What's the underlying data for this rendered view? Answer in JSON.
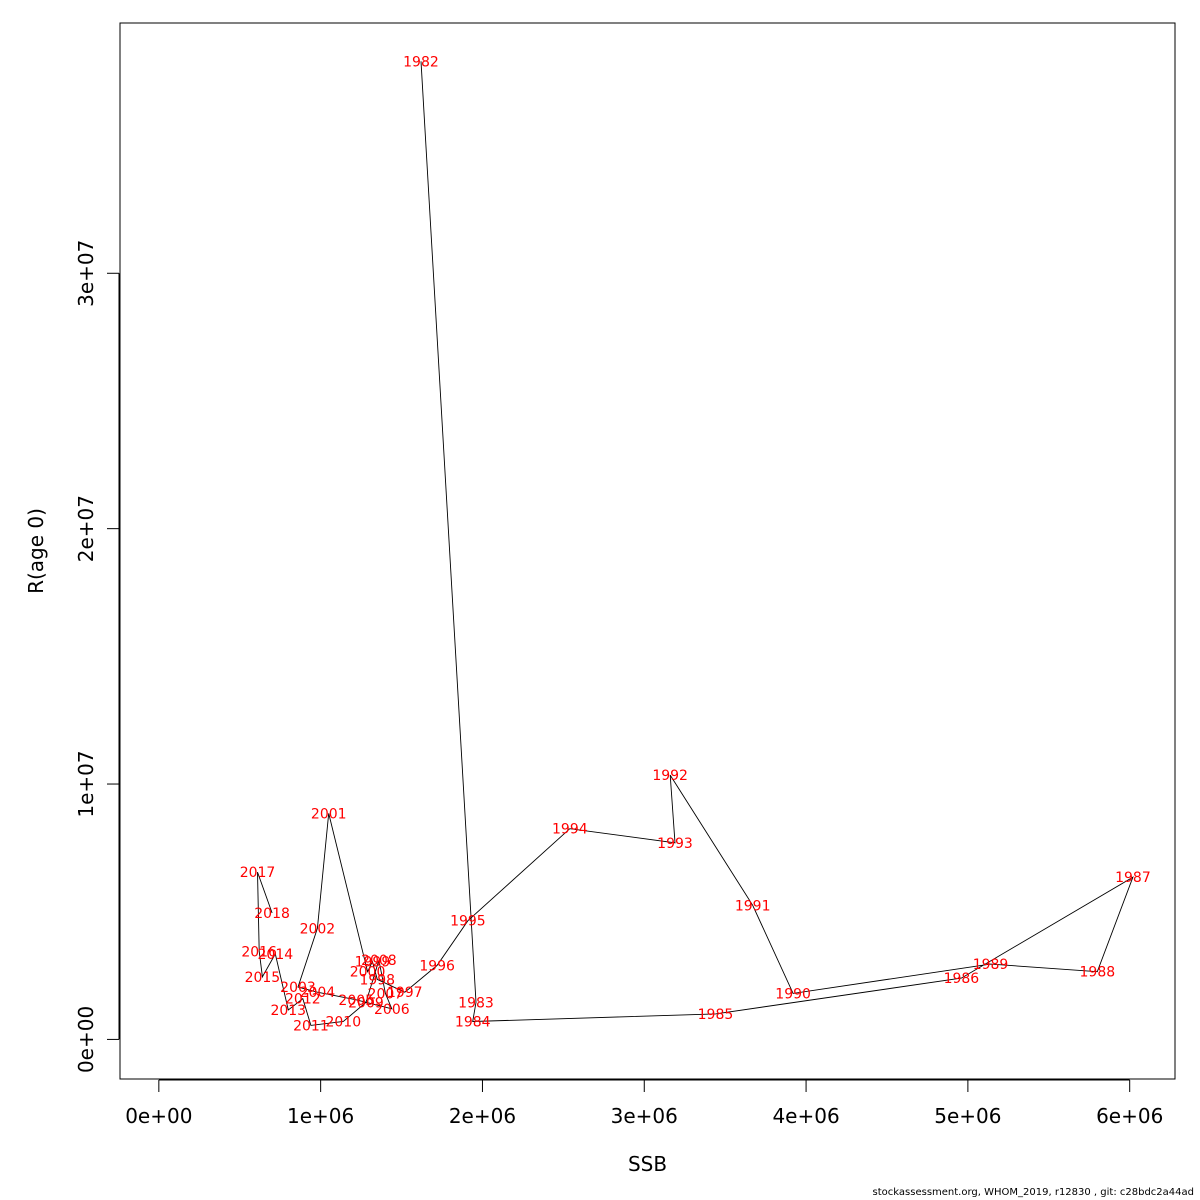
{
  "chart_data": {
    "type": "line",
    "xlabel": "SSB",
    "ylabel": "R(age 0)",
    "xlim": [
      -240000,
      6280000
    ],
    "ylim": [
      -1550000,
      39800000
    ],
    "x_ticks": [
      0,
      1000000,
      2000000,
      3000000,
      4000000,
      5000000,
      6000000
    ],
    "x_tick_labels": [
      "0e+00",
      "1e+06",
      "2e+06",
      "3e+06",
      "4e+06",
      "5e+06",
      "6e+06"
    ],
    "y_ticks": [
      0,
      10000000,
      20000000,
      30000000
    ],
    "y_tick_labels": [
      "0e+00",
      "1e+07",
      "2e+07",
      "3e+07"
    ],
    "line_color": "#000000",
    "label_color": "#ff0000",
    "points": [
      {
        "year": "1982",
        "x": 1620000,
        "y": 38300000
      },
      {
        "year": "1983",
        "x": 1960000,
        "y": 1450000
      },
      {
        "year": "1984",
        "x": 1940000,
        "y": 700000
      },
      {
        "year": "1985",
        "x": 3440000,
        "y": 1000000
      },
      {
        "year": "1986",
        "x": 4960000,
        "y": 2400000
      },
      {
        "year": "1987",
        "x": 6020000,
        "y": 6350000
      },
      {
        "year": "1988",
        "x": 5800000,
        "y": 2650000
      },
      {
        "year": "1989",
        "x": 5140000,
        "y": 2950000
      },
      {
        "year": "1990",
        "x": 3920000,
        "y": 1800000
      },
      {
        "year": "1991",
        "x": 3670000,
        "y": 5250000
      },
      {
        "year": "1992",
        "x": 3160000,
        "y": 10350000
      },
      {
        "year": "1993",
        "x": 3190000,
        "y": 7700000
      },
      {
        "year": "1994",
        "x": 2540000,
        "y": 8250000
      },
      {
        "year": "1995",
        "x": 1910000,
        "y": 4650000
      },
      {
        "year": "1996",
        "x": 1720000,
        "y": 2900000
      },
      {
        "year": "1997",
        "x": 1520000,
        "y": 1850000
      },
      {
        "year": "1998",
        "x": 1350000,
        "y": 2350000
      },
      {
        "year": "1999",
        "x": 1320000,
        "y": 3050000
      },
      {
        "year": "2000",
        "x": 1290000,
        "y": 2650000
      },
      {
        "year": "2001",
        "x": 1050000,
        "y": 8850000
      },
      {
        "year": "2002",
        "x": 980000,
        "y": 4350000
      },
      {
        "year": "2003",
        "x": 860000,
        "y": 2050000
      },
      {
        "year": "2004",
        "x": 980000,
        "y": 1850000
      },
      {
        "year": "2005",
        "x": 1220000,
        "y": 1550000
      },
      {
        "year": "2006",
        "x": 1440000,
        "y": 1200000
      },
      {
        "year": "2007",
        "x": 1400000,
        "y": 1800000
      },
      {
        "year": "2008",
        "x": 1360000,
        "y": 3100000
      },
      {
        "year": "2009",
        "x": 1280000,
        "y": 1450000
      },
      {
        "year": "2010",
        "x": 1140000,
        "y": 700000
      },
      {
        "year": "2011",
        "x": 940000,
        "y": 550000
      },
      {
        "year": "2012",
        "x": 890000,
        "y": 1600000
      },
      {
        "year": "2013",
        "x": 800000,
        "y": 1150000
      },
      {
        "year": "2014",
        "x": 720000,
        "y": 3350000
      },
      {
        "year": "2015",
        "x": 640000,
        "y": 2450000
      },
      {
        "year": "2016",
        "x": 620000,
        "y": 3450000
      },
      {
        "year": "2017",
        "x": 610000,
        "y": 6550000
      },
      {
        "year": "2018",
        "x": 700000,
        "y": 4950000
      }
    ]
  },
  "footer_text": "stockassessment.org, WHOM_2019, r12830 , git: c28bdc2a44ad"
}
